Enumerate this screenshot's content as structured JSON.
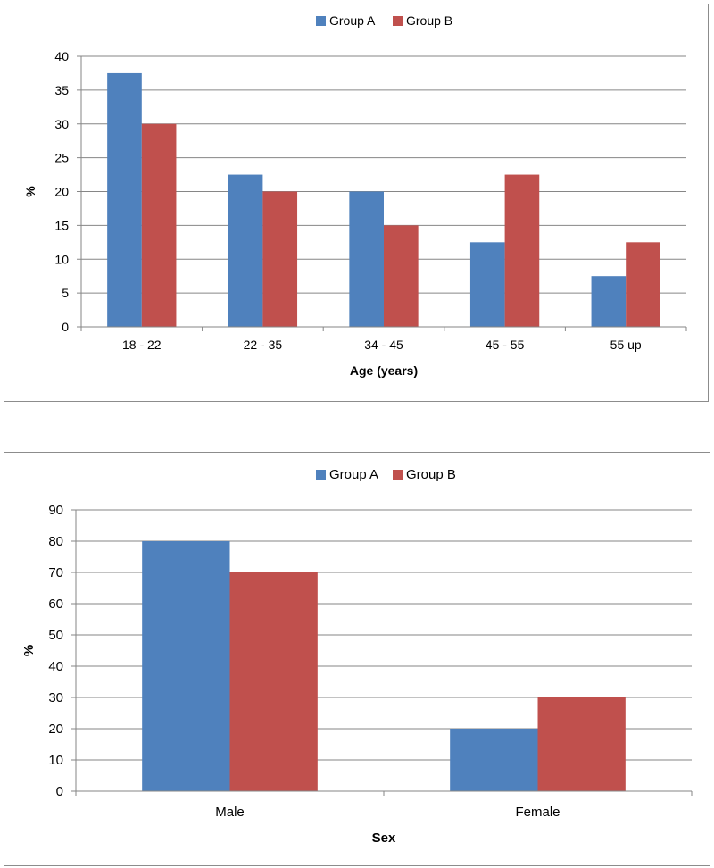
{
  "chart_data": [
    {
      "type": "bar",
      "categories": [
        "18 - 22",
        "22 - 35",
        "34 - 45",
        "45 - 55",
        "55 up"
      ],
      "series": [
        {
          "name": "Group A",
          "values": [
            37.5,
            22.5,
            20,
            12.5,
            7.5
          ],
          "color": "#4f81bd"
        },
        {
          "name": "Group B",
          "values": [
            30,
            20,
            15,
            22.5,
            12.5
          ],
          "color": "#c0504d"
        }
      ],
      "title": "",
      "xlabel": "Age (years)",
      "ylabel": "%",
      "ylim": [
        0,
        40
      ],
      "yticks": [
        0,
        5,
        10,
        15,
        20,
        25,
        30,
        35,
        40
      ],
      "grid": true,
      "legend": "top-center"
    },
    {
      "type": "bar",
      "categories": [
        "Male",
        "Female"
      ],
      "series": [
        {
          "name": "Group A",
          "values": [
            80,
            20
          ],
          "color": "#4f81bd"
        },
        {
          "name": "Group B",
          "values": [
            70,
            30
          ],
          "color": "#c0504d"
        }
      ],
      "title": "",
      "xlabel": "Sex",
      "ylabel": "%",
      "ylim": [
        0,
        90
      ],
      "yticks": [
        0,
        10,
        20,
        30,
        40,
        50,
        60,
        70,
        80,
        90
      ],
      "grid": true,
      "legend": "top-center"
    }
  ]
}
